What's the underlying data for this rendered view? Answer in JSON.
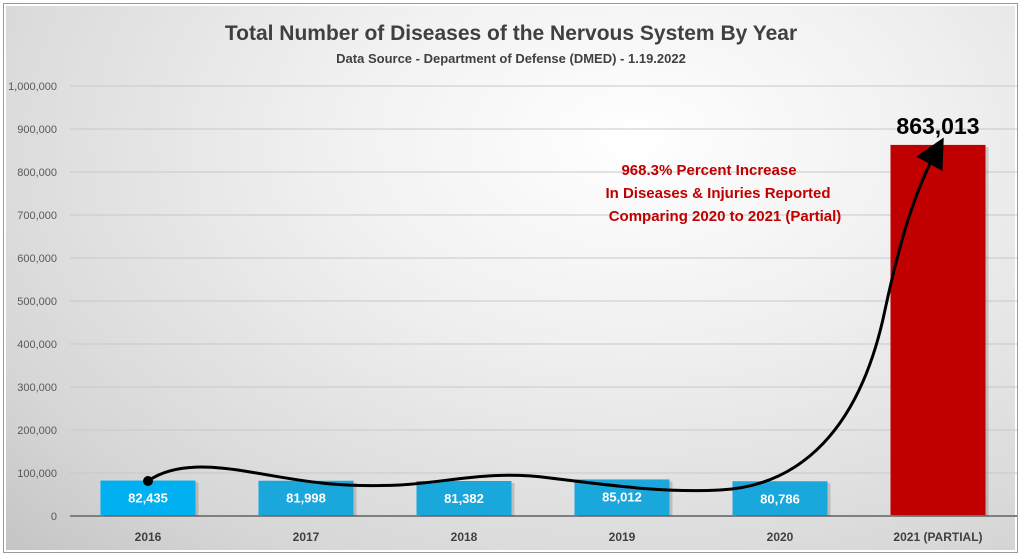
{
  "chart_data": {
    "type": "bar",
    "title": "Total Number of Diseases of the Nervous System By Year",
    "subtitle": "Data Source - Department of Defense (DMED) - 1.19.2022",
    "categories": [
      "2016",
      "2017",
      "2018",
      "2019",
      "2020",
      "2021 (PARTIAL)"
    ],
    "values": [
      82435,
      81998,
      81382,
      85012,
      80786,
      863013
    ],
    "data_labels": [
      "82,435",
      "81,998",
      "81,382",
      "85,012",
      "80,786",
      "863,013"
    ],
    "colors": [
      "#00b0f0",
      "#1aa7dc",
      "#1aa7dc",
      "#1aa7dc",
      "#1aa7dc",
      "#c00000"
    ],
    "ylim": [
      0,
      1000000
    ],
    "yticks": [
      0,
      100000,
      200000,
      300000,
      400000,
      500000,
      600000,
      700000,
      800000,
      900000,
      1000000
    ],
    "ytick_labels": [
      "0",
      "100,000",
      "200,000",
      "300,000",
      "400,000",
      "500,000",
      "600,000",
      "700,000",
      "800,000",
      "900,000",
      "1,000,000"
    ],
    "grid": true,
    "annotation": [
      "968.3% Percent Increase",
      "In Diseases & Injuries Reported",
      "Comparing 2020 to 2021 (Partial)"
    ]
  }
}
